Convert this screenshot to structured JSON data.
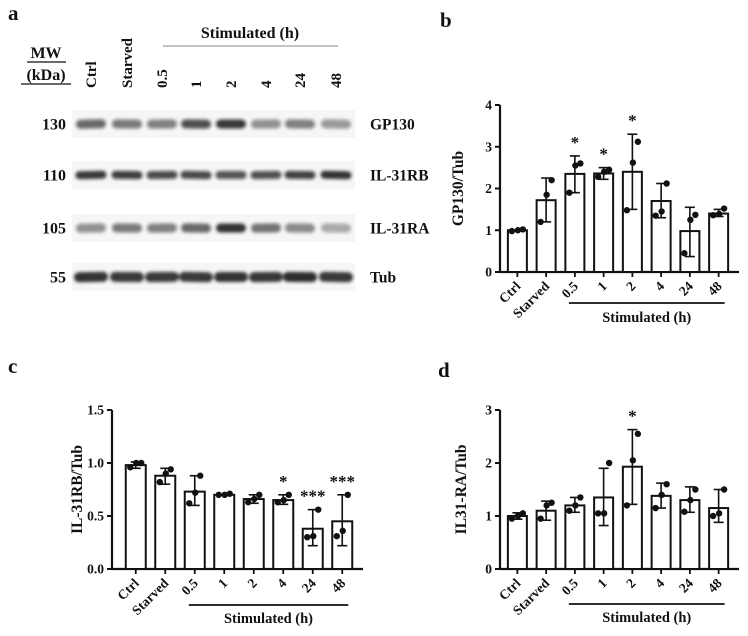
{
  "panels": {
    "a": "a",
    "b": "b",
    "c": "c",
    "d": "d"
  },
  "blot": {
    "mw_header_line1": "MW",
    "mw_header_line2": "(kDa)",
    "group_label": "Stimulated (h)",
    "lane_labels": [
      "Ctrl",
      "Starved",
      "0.5",
      "1",
      "2",
      "4",
      "24",
      "48"
    ],
    "rows": [
      {
        "mw": "130",
        "protein": "GP130",
        "intensities": [
          0.62,
          0.55,
          0.52,
          0.72,
          0.82,
          0.45,
          0.52,
          0.42
        ]
      },
      {
        "mw": "110",
        "protein": "IL-31RB",
        "intensities": [
          0.85,
          0.8,
          0.74,
          0.75,
          0.7,
          0.72,
          0.78,
          0.88
        ]
      },
      {
        "mw": "105",
        "protein": "IL-31RA",
        "intensities": [
          0.45,
          0.55,
          0.52,
          0.62,
          0.88,
          0.58,
          0.48,
          0.35
        ]
      },
      {
        "mw": "55",
        "protein": "Tub",
        "intensities": [
          0.88,
          0.85,
          0.82,
          0.85,
          0.88,
          0.86,
          0.9,
          0.85
        ]
      }
    ]
  },
  "chart_data": [
    {
      "panel": "b",
      "type": "bar",
      "title": "",
      "ylabel": "GP130/Tub",
      "xlabel": "",
      "ylim": [
        0,
        4
      ],
      "yticks": [
        "0",
        "1",
        "2",
        "3",
        "4"
      ],
      "categories": [
        "Ctrl",
        "Starved",
        "0.5",
        "1",
        "2",
        "4",
        "24",
        "48"
      ],
      "values": [
        1.0,
        1.72,
        2.35,
        2.36,
        2.4,
        1.7,
        0.98,
        1.4
      ],
      "err_lo": [
        0.97,
        1.2,
        1.9,
        2.22,
        1.5,
        1.3,
        0.37,
        1.33
      ],
      "err_hi": [
        1.03,
        2.25,
        2.78,
        2.5,
        3.3,
        2.12,
        1.55,
        1.5
      ],
      "points": [
        [
          0.98,
          1.0,
          1.02
        ],
        [
          1.2,
          1.85,
          2.2
        ],
        [
          1.9,
          2.55,
          2.6
        ],
        [
          2.28,
          2.4,
          2.45
        ],
        [
          1.48,
          2.62,
          3.12
        ],
        [
          1.35,
          1.45,
          2.12
        ],
        [
          0.45,
          1.25,
          1.37
        ],
        [
          1.36,
          1.39,
          1.52
        ]
      ],
      "sig": [
        "",
        "",
        "*",
        "*",
        "*",
        "",
        "",
        ""
      ],
      "group_label": "Stimulated (h)",
      "group_range": [
        2,
        7
      ],
      "grid": false,
      "legend": false
    },
    {
      "panel": "c",
      "type": "bar",
      "title": "",
      "ylabel": "IL-31RB/Tub",
      "xlabel": "",
      "ylim": [
        0,
        1.5
      ],
      "yticks": [
        "0.0",
        "0.5",
        "1.0",
        "1.5"
      ],
      "categories": [
        "Ctrl",
        "Starved",
        "0.5",
        "1",
        "2",
        "4",
        "24",
        "48"
      ],
      "values": [
        0.98,
        0.88,
        0.73,
        0.7,
        0.66,
        0.65,
        0.38,
        0.45
      ],
      "err_lo": [
        0.95,
        0.8,
        0.6,
        0.69,
        0.62,
        0.61,
        0.22,
        0.22
      ],
      "err_hi": [
        1.01,
        0.95,
        0.88,
        0.71,
        0.7,
        0.7,
        0.56,
        0.7
      ],
      "points": [
        [
          0.96,
          1.0,
          1.0
        ],
        [
          0.82,
          0.9,
          0.94
        ],
        [
          0.62,
          0.72,
          0.88
        ],
        [
          0.7,
          0.7,
          0.71
        ],
        [
          0.63,
          0.66,
          0.7
        ],
        [
          0.63,
          0.65,
          0.7
        ],
        [
          0.3,
          0.31,
          0.56
        ],
        [
          0.31,
          0.36,
          0.7
        ]
      ],
      "sig": [
        "",
        "",
        "",
        "",
        "",
        "*",
        "***",
        "***"
      ],
      "group_label": "Stimulated (h)",
      "group_range": [
        2,
        7
      ],
      "grid": false,
      "legend": false
    },
    {
      "panel": "d",
      "type": "bar",
      "title": "",
      "ylabel": "IL31-RA/Tub",
      "xlabel": "",
      "ylim": [
        0,
        3
      ],
      "yticks": [
        "0",
        "1",
        "2",
        "3"
      ],
      "categories": [
        "Ctrl",
        "Starved",
        "0.5",
        "1",
        "2",
        "4",
        "24",
        "48"
      ],
      "values": [
        1.0,
        1.1,
        1.2,
        1.35,
        1.93,
        1.38,
        1.3,
        1.15
      ],
      "err_lo": [
        0.94,
        0.92,
        1.07,
        0.82,
        1.22,
        1.15,
        1.07,
        0.88
      ],
      "err_hi": [
        1.06,
        1.28,
        1.35,
        1.9,
        2.63,
        1.62,
        1.55,
        1.5
      ],
      "points": [
        [
          0.95,
          1.0,
          1.05
        ],
        [
          0.95,
          1.2,
          1.25
        ],
        [
          1.1,
          1.2,
          1.35
        ],
        [
          1.05,
          1.05,
          2.0
        ],
        [
          1.2,
          2.05,
          2.55
        ],
        [
          1.15,
          1.4,
          1.6
        ],
        [
          1.08,
          1.3,
          1.5
        ],
        [
          1.0,
          1.05,
          1.5
        ]
      ],
      "sig": [
        "",
        "",
        "",
        "",
        "*",
        "",
        "",
        ""
      ],
      "group_label": "Stimulated (h)",
      "group_range": [
        2,
        7
      ],
      "grid": false,
      "legend": false
    }
  ]
}
